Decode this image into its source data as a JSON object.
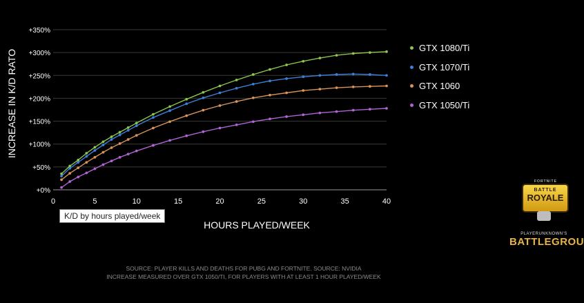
{
  "chart_data": {
    "type": "scatter",
    "ylabel": "INCREASE IN K/D RATO",
    "xlabel": "HOURS PLAYED/WEEK",
    "xlim": [
      0,
      40
    ],
    "ylim": [
      0,
      350
    ],
    "x_ticks": [
      "0",
      "5",
      "10",
      "15",
      "20",
      "25",
      "30",
      "35",
      "40"
    ],
    "y_ticks": [
      "+0%",
      "+50%",
      "+100%",
      "+150%",
      "+200%",
      "+250%",
      "+300%",
      "+350%"
    ],
    "grid": "horizontal",
    "legend_position": "right",
    "series": [
      {
        "name": "GTX 1080/Ti",
        "color": "#8cc44e",
        "x": [
          1,
          2,
          3,
          4,
          5,
          6,
          7,
          8,
          9,
          10,
          12,
          14,
          16,
          18,
          20,
          22,
          24,
          26,
          28,
          30,
          32,
          34,
          36,
          38,
          40
        ],
        "y": [
          35,
          52,
          65,
          80,
          93,
          105,
          116,
          126,
          136,
          146,
          165,
          182,
          198,
          213,
          227,
          240,
          252,
          263,
          273,
          281,
          288,
          294,
          298,
          300,
          302
        ]
      },
      {
        "name": "GTX 1070/Ti",
        "color": "#3d7fd8",
        "x": [
          1,
          2,
          3,
          4,
          5,
          6,
          7,
          8,
          9,
          10,
          12,
          14,
          16,
          18,
          20,
          22,
          24,
          26,
          28,
          30,
          32,
          34,
          36,
          38,
          40
        ],
        "y": [
          30,
          47,
          60,
          73,
          86,
          98,
          110,
          120,
          130,
          140,
          158,
          173,
          188,
          201,
          212,
          222,
          231,
          238,
          243,
          247,
          250,
          252,
          253,
          252,
          250
        ]
      },
      {
        "name": "GTX 1060",
        "color": "#d7935a",
        "x": [
          1,
          2,
          3,
          4,
          5,
          6,
          7,
          8,
          9,
          10,
          12,
          14,
          16,
          18,
          20,
          22,
          24,
          26,
          28,
          30,
          32,
          34,
          36,
          38,
          40
        ],
        "y": [
          22,
          36,
          48,
          60,
          71,
          82,
          92,
          101,
          110,
          119,
          135,
          149,
          162,
          174,
          184,
          193,
          201,
          207,
          212,
          217,
          220,
          223,
          225,
          226,
          227
        ]
      },
      {
        "name": "GTX 1050/Ti",
        "color": "#b163d4",
        "x": [
          1,
          2,
          3,
          4,
          5,
          6,
          7,
          8,
          9,
          10,
          12,
          14,
          16,
          18,
          20,
          22,
          24,
          26,
          28,
          30,
          32,
          34,
          36,
          38,
          40
        ],
        "y": [
          5,
          18,
          28,
          37,
          46,
          55,
          63,
          71,
          78,
          85,
          97,
          108,
          118,
          127,
          135,
          142,
          149,
          155,
          160,
          164,
          168,
          171,
          174,
          176,
          178
        ]
      }
    ]
  },
  "tooltip": {
    "text": "K/D by hours played/week"
  },
  "source": {
    "line1": "SOURCE: PLAYER KILLS AND DEATHS FOR PUBG AND FORTNITE. SOURCE: NVIDIA",
    "line2": "INCREASE MEASURED OVER GTX 1050/TI, FOR PLAYERS WITH AT LEAST 1 HOUR PLAYED/WEEK"
  },
  "logos": {
    "fortnite_small": "FORTNITE",
    "fortnite_top": "BATTLE",
    "fortnite_main": "ROYALE",
    "pubg_top": "PLAYERUNKNOWN'S",
    "pubg_main": "BATTLEGROUNDS"
  }
}
